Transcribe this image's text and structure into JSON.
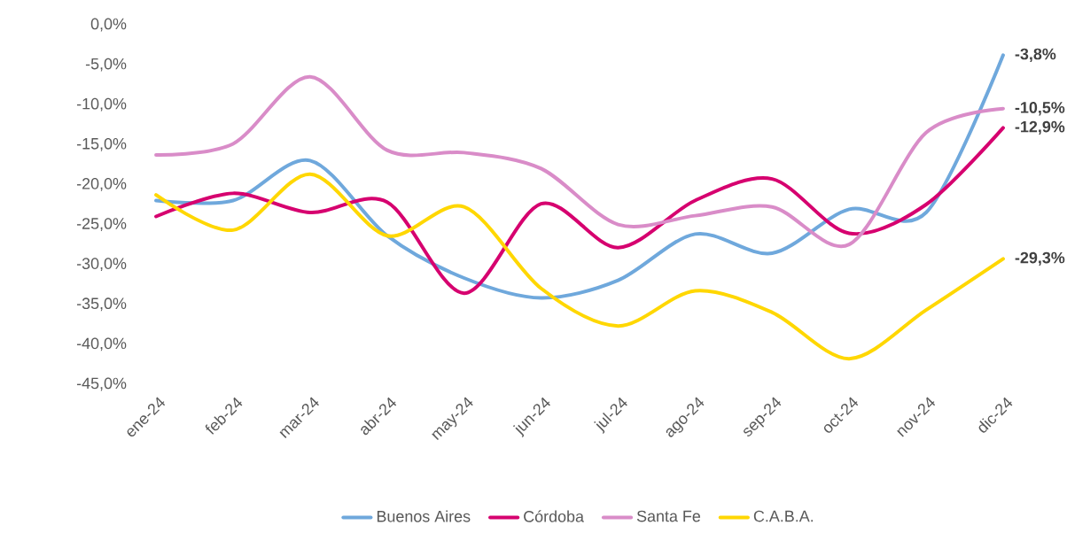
{
  "chart_data": {
    "type": "line",
    "categories": [
      "ene-24",
      "feb-24",
      "mar-24",
      "abr-24",
      "may-24",
      "jun-24",
      "jul-24",
      "ago-24",
      "sep-24",
      "oct-24",
      "nov-24",
      "dic-24"
    ],
    "series": [
      {
        "name": "Buenos Aires",
        "color": "#6fa8dc",
        "values": [
          -22,
          -22,
          -17,
          -26.4,
          -31.7,
          -34.2,
          -32,
          -26.2,
          -28.6,
          -23.1,
          -23.5,
          -3.8
        ],
        "value_labels": [
          null,
          null,
          null,
          null,
          null,
          null,
          null,
          null,
          null,
          null,
          null,
          "-3,8%"
        ]
      },
      {
        "name": "Córdoba",
        "color": "#d6006f",
        "values": [
          -24,
          -21.1,
          -23.5,
          -22.2,
          -33.6,
          -22.4,
          -27.9,
          -22,
          -19.3,
          -26.1,
          -22.5,
          -12.9
        ],
        "value_labels": [
          null,
          null,
          null,
          null,
          null,
          null,
          null,
          null,
          null,
          null,
          null,
          "-12,9%"
        ]
      },
      {
        "name": "Santa Fe",
        "color": "#d98cc8",
        "values": [
          -16.3,
          -14.9,
          -6.5,
          -15.7,
          -16,
          -18,
          -25,
          -23.9,
          -22.8,
          -27.5,
          -13.5,
          -10.5
        ],
        "value_labels": [
          null,
          null,
          null,
          null,
          null,
          null,
          null,
          null,
          null,
          null,
          null,
          "-10,5%"
        ]
      },
      {
        "name": "C.A.B.A.",
        "color": "#ffd700",
        "values": [
          -21.3,
          -25.7,
          -18.7,
          -26.4,
          -22.8,
          -33,
          -37.7,
          -33.3,
          -36,
          -41.8,
          -35.7,
          -29.3
        ],
        "value_labels": [
          null,
          null,
          null,
          null,
          null,
          null,
          null,
          null,
          null,
          null,
          null,
          "-29,3%"
        ]
      }
    ],
    "ylim": [
      -45,
      0
    ],
    "yticks": [
      {
        "value": 0,
        "label": "0,0%"
      },
      {
        "value": -5,
        "label": "-5,0%"
      },
      {
        "value": -10,
        "label": "-10,0%"
      },
      {
        "value": -15,
        "label": "-15,0%"
      },
      {
        "value": -20,
        "label": "-20,0%"
      },
      {
        "value": -25,
        "label": "-25,0%"
      },
      {
        "value": -30,
        "label": "-30,0%"
      },
      {
        "value": -35,
        "label": "-35,0%"
      },
      {
        "value": -40,
        "label": "-40,0%"
      },
      {
        "value": -45,
        "label": "-45,0%"
      }
    ],
    "legend": "bottom",
    "grid": false,
    "marker": "none",
    "line_style": "solid"
  }
}
